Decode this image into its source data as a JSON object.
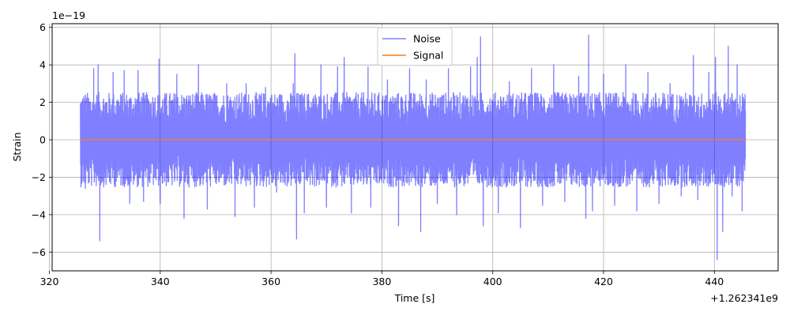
{
  "chart_data": {
    "type": "line",
    "title": "",
    "xlabel": "Time [s]",
    "ylabel": "Strain",
    "x_offset_label": "+1.262341e9",
    "y_scale_label": "1e−19",
    "xlim": [
      320.5,
      451.5
    ],
    "ylim": [
      -7,
      6.2
    ],
    "x_ticks": [
      320,
      340,
      360,
      380,
      400,
      420,
      440
    ],
    "y_ticks": [
      -6,
      -4,
      -2,
      0,
      2,
      4,
      6
    ],
    "grid": true,
    "legend_position": "top-center",
    "x_range": [
      325.6,
      445.6
    ],
    "series": [
      {
        "name": "Noise",
        "color": "#0000ff",
        "opacity": 0.5,
        "envelope_typical": 2.3,
        "peaks": [
          {
            "x": 326.0,
            "y": 1.7
          },
          {
            "x": 326.5,
            "y": -2.6
          },
          {
            "x": 328.0,
            "y": 3.8
          },
          {
            "x": 328.8,
            "y": 4.0
          },
          {
            "x": 329.1,
            "y": -5.4
          },
          {
            "x": 331.5,
            "y": 3.6
          },
          {
            "x": 333.5,
            "y": 3.7
          },
          {
            "x": 334.5,
            "y": -3.4
          },
          {
            "x": 336.0,
            "y": 3.7
          },
          {
            "x": 337.0,
            "y": -3.3
          },
          {
            "x": 339.8,
            "y": 4.3
          },
          {
            "x": 340.0,
            "y": -3.4
          },
          {
            "x": 343.0,
            "y": 3.5
          },
          {
            "x": 344.3,
            "y": -4.2
          },
          {
            "x": 346.9,
            "y": 4.0
          },
          {
            "x": 348.5,
            "y": -3.7
          },
          {
            "x": 352.0,
            "y": 3.0
          },
          {
            "x": 353.5,
            "y": -4.1
          },
          {
            "x": 355.5,
            "y": 3.0
          },
          {
            "x": 357.0,
            "y": -3.6
          },
          {
            "x": 359.0,
            "y": 2.8
          },
          {
            "x": 361.0,
            "y": -2.8
          },
          {
            "x": 364.0,
            "y": 3.0
          },
          {
            "x": 364.3,
            "y": 4.6
          },
          {
            "x": 364.6,
            "y": -5.3
          },
          {
            "x": 366.0,
            "y": -3.9
          },
          {
            "x": 369.0,
            "y": 4.0
          },
          {
            "x": 370.0,
            "y": -3.6
          },
          {
            "x": 372.0,
            "y": 3.9
          },
          {
            "x": 373.2,
            "y": 4.4
          },
          {
            "x": 374.5,
            "y": -3.9
          },
          {
            "x": 377.5,
            "y": 3.9
          },
          {
            "x": 378.0,
            "y": -3.6
          },
          {
            "x": 381.0,
            "y": 3.2
          },
          {
            "x": 383.0,
            "y": -4.6
          },
          {
            "x": 385.0,
            "y": 3.8
          },
          {
            "x": 387.0,
            "y": -4.9
          },
          {
            "x": 388.0,
            "y": 3.2
          },
          {
            "x": 390.0,
            "y": -3.4
          },
          {
            "x": 392.0,
            "y": 3.8
          },
          {
            "x": 393.5,
            "y": -4.0
          },
          {
            "x": 396.0,
            "y": 3.9
          },
          {
            "x": 397.2,
            "y": 4.4
          },
          {
            "x": 397.8,
            "y": 5.5
          },
          {
            "x": 398.3,
            "y": -4.6
          },
          {
            "x": 401.0,
            "y": -3.9
          },
          {
            "x": 403.0,
            "y": 3.1
          },
          {
            "x": 405.0,
            "y": -4.7
          },
          {
            "x": 407.0,
            "y": 3.8
          },
          {
            "x": 409.0,
            "y": -3.5
          },
          {
            "x": 411.0,
            "y": 4.0
          },
          {
            "x": 413.0,
            "y": -3.3
          },
          {
            "x": 415.5,
            "y": 3.4
          },
          {
            "x": 416.8,
            "y": -4.2
          },
          {
            "x": 417.3,
            "y": 5.6
          },
          {
            "x": 418.0,
            "y": -3.8
          },
          {
            "x": 420.0,
            "y": 3.5
          },
          {
            "x": 422.0,
            "y": -3.5
          },
          {
            "x": 424.0,
            "y": 4.0
          },
          {
            "x": 426.0,
            "y": -3.8
          },
          {
            "x": 428.0,
            "y": 3.6
          },
          {
            "x": 430.0,
            "y": -3.4
          },
          {
            "x": 432.0,
            "y": 3.0
          },
          {
            "x": 434.0,
            "y": -3.0
          },
          {
            "x": 436.2,
            "y": 4.5
          },
          {
            "x": 437.0,
            "y": -3.2
          },
          {
            "x": 439.0,
            "y": 3.6
          },
          {
            "x": 440.2,
            "y": 4.4
          },
          {
            "x": 440.5,
            "y": -6.4
          },
          {
            "x": 441.5,
            "y": -4.9
          },
          {
            "x": 442.5,
            "y": 5.0
          },
          {
            "x": 443.2,
            "y": -3.0
          },
          {
            "x": 444.1,
            "y": 4.0
          },
          {
            "x": 445.0,
            "y": -3.8
          }
        ]
      },
      {
        "name": "Signal",
        "color": "#ff7f0e",
        "opacity": 1.0,
        "x": [
          325.6,
          445.6
        ],
        "values": [
          0,
          0
        ]
      }
    ]
  }
}
